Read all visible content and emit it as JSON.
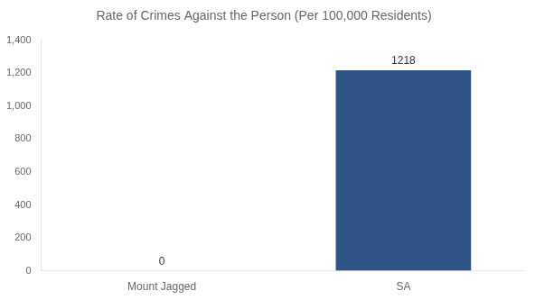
{
  "chart_data": {
    "type": "bar",
    "title": "Rate of Crimes Against the Person (Per 100,000 Residents)",
    "categories": [
      "Mount Jagged",
      "SA"
    ],
    "values": [
      0,
      1218
    ],
    "color": "#2e5585",
    "ylim": [
      0,
      1400
    ],
    "yticks": [
      0,
      200,
      400,
      600,
      800,
      1000,
      1200,
      1400
    ],
    "grid": false,
    "data_labels": true
  }
}
